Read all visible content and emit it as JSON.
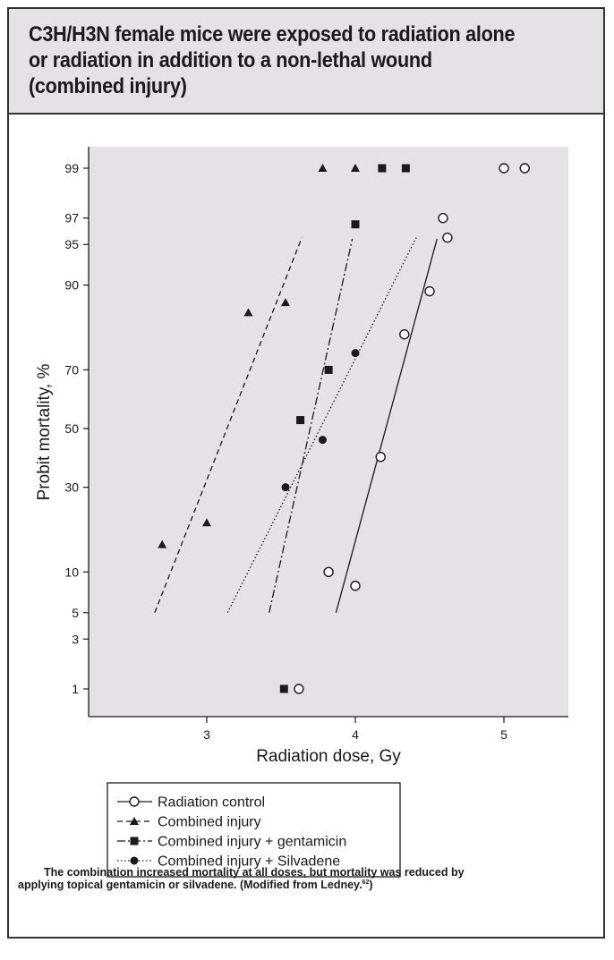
{
  "title": {
    "line1": "C3H/H3N female mice were exposed to radiation alone",
    "line2": "or radiation in addition to a non-lethal wound",
    "line3": "(combined injury)"
  },
  "caption": {
    "line1": "The combination increased mortality at all doses, but mortality was reduced by",
    "line2_a": "applying topical gentamicin or silvadene. (Modified from Ledney.",
    "line2_ref": "62",
    "line2_b": ")"
  },
  "colors": {
    "plot_background": "#e6e1e6",
    "header_background": "#e6e1e6",
    "ink": "#1a1a1a"
  },
  "chart_data": {
    "type": "scatter",
    "xlabel": "Radiation dose, Gy",
    "ylabel": "Probit mortality, %",
    "xlim": [
      2.4,
      5.65
    ],
    "y_scale": "probit",
    "x_ticks": [
      3,
      4,
      5
    ],
    "y_ticks": [
      1,
      3,
      5,
      10,
      30,
      50,
      70,
      90,
      95,
      97,
      99
    ],
    "grid": false,
    "legend_position": "below",
    "series": [
      {
        "name": "Radiation control",
        "marker": "open-circle",
        "line_style": "solid",
        "points": [
          {
            "x": 3.62,
            "y": 1
          },
          {
            "x": 3.82,
            "y": 10
          },
          {
            "x": 4.0,
            "y": 8
          },
          {
            "x": 4.17,
            "y": 40
          },
          {
            "x": 4.33,
            "y": 80
          },
          {
            "x": 4.5,
            "y": 89
          },
          {
            "x": 4.59,
            "y": 97
          },
          {
            "x": 4.62,
            "y": 95.6
          },
          {
            "x": 5.0,
            "y": 99
          },
          {
            "x": 5.14,
            "y": 99
          }
        ],
        "fit_line": [
          {
            "x": 3.87,
            "y": 5
          },
          {
            "x": 4.55,
            "y": 95.5
          }
        ]
      },
      {
        "name": "Combined injury",
        "marker": "filled-triangle",
        "line_style": "dashed",
        "points": [
          {
            "x": 2.7,
            "y": 15
          },
          {
            "x": 3.0,
            "y": 20
          },
          {
            "x": 3.28,
            "y": 85
          },
          {
            "x": 3.53,
            "y": 87
          },
          {
            "x": 3.78,
            "y": 99
          },
          {
            "x": 4.0,
            "y": 99
          }
        ],
        "fit_line": [
          {
            "x": 2.65,
            "y": 5
          },
          {
            "x": 3.64,
            "y": 95.6
          }
        ]
      },
      {
        "name": "Combined injury + gentamicin",
        "marker": "filled-square",
        "line_style": "dash-dot",
        "points": [
          {
            "x": 3.52,
            "y": 1
          },
          {
            "x": 3.63,
            "y": 53
          },
          {
            "x": 3.82,
            "y": 70
          },
          {
            "x": 4.0,
            "y": 96.6
          },
          {
            "x": 4.18,
            "y": 99
          },
          {
            "x": 4.34,
            "y": 99
          }
        ],
        "fit_line": [
          {
            "x": 3.42,
            "y": 5
          },
          {
            "x": 3.98,
            "y": 95.5
          }
        ]
      },
      {
        "name": "Combined injury + Silvadene",
        "marker": "filled-circle",
        "line_style": "dotted",
        "points": [
          {
            "x": 3.53,
            "y": 30
          },
          {
            "x": 3.78,
            "y": 46
          },
          {
            "x": 4.0,
            "y": 75
          }
        ],
        "fit_line": [
          {
            "x": 3.14,
            "y": 5
          },
          {
            "x": 4.41,
            "y": 95.6
          }
        ]
      }
    ]
  }
}
